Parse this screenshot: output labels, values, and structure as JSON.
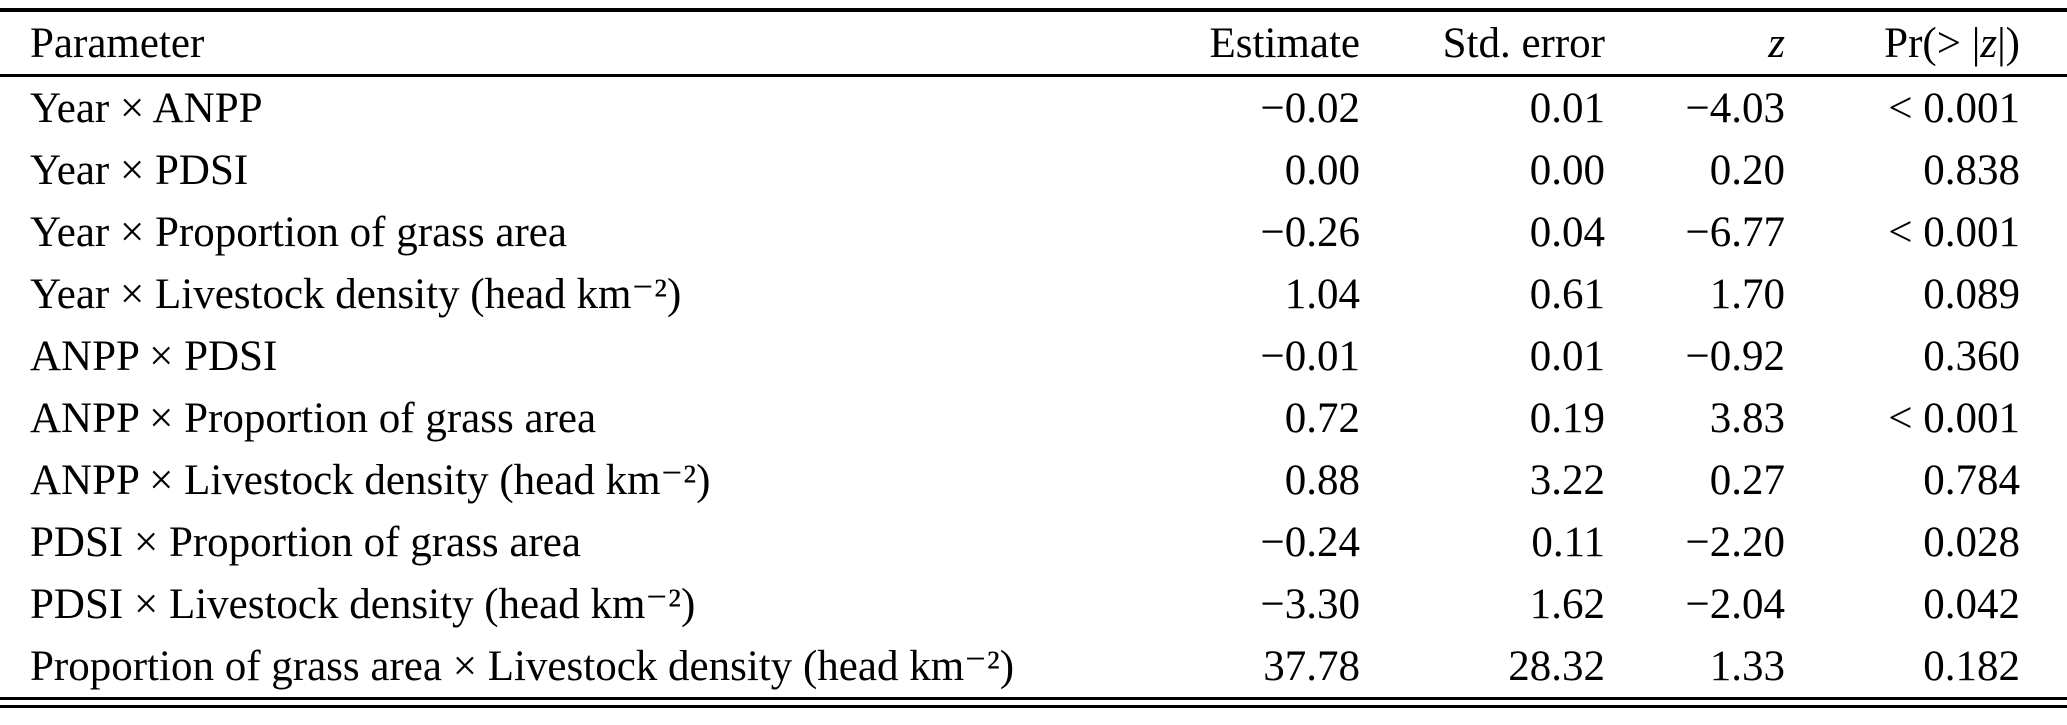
{
  "table": {
    "header": {
      "parameter": "Parameter",
      "estimate": "Estimate",
      "std_error": "Std. error",
      "z": "z",
      "pr_prefix": "Pr(> |",
      "pr_z": "z",
      "pr_suffix": "|)"
    },
    "rows": [
      {
        "param": "Year × ANPP",
        "estimate": "−0.02",
        "std_error": "0.01",
        "z": "−4.03",
        "p": "< 0.001"
      },
      {
        "param": "Year × PDSI",
        "estimate": "0.00",
        "std_error": "0.00",
        "z": "0.20",
        "p": "0.838"
      },
      {
        "param": "Year × Proportion of grass area",
        "estimate": "−0.26",
        "std_error": "0.04",
        "z": "−6.77",
        "p": "< 0.001"
      },
      {
        "param": "Year × Livestock density (head km⁻²)",
        "estimate": "1.04",
        "std_error": "0.61",
        "z": "1.70",
        "p": "0.089"
      },
      {
        "param": "ANPP × PDSI",
        "estimate": "−0.01",
        "std_error": "0.01",
        "z": "−0.92",
        "p": "0.360"
      },
      {
        "param": "ANPP × Proportion of grass area",
        "estimate": "0.72",
        "std_error": "0.19",
        "z": "3.83",
        "p": "< 0.001"
      },
      {
        "param": "ANPP × Livestock density (head km⁻²)",
        "estimate": "0.88",
        "std_error": "3.22",
        "z": "0.27",
        "p": "0.784"
      },
      {
        "param": "PDSI × Proportion of grass area",
        "estimate": "−0.24",
        "std_error": "0.11",
        "z": "−2.20",
        "p": "0.028"
      },
      {
        "param": "PDSI × Livestock density (head km⁻²)",
        "estimate": "−3.30",
        "std_error": "1.62",
        "z": "−2.04",
        "p": "0.042"
      },
      {
        "param": "Proportion of grass area × Livestock density (head km⁻²)",
        "estimate": "37.78",
        "std_error": "28.32",
        "z": "1.33",
        "p": "0.182"
      }
    ]
  }
}
